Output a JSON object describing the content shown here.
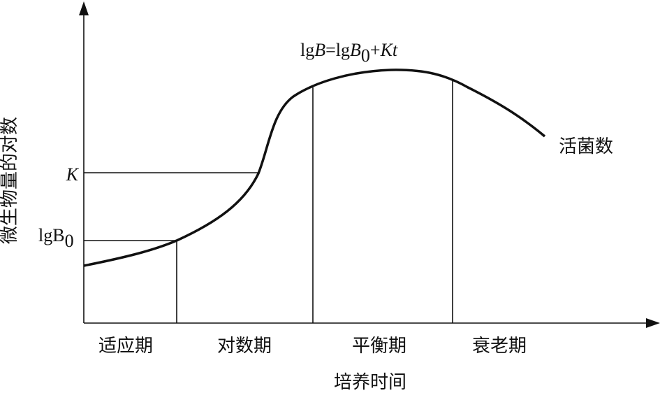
{
  "y_axis_label": "微生物量的对数",
  "x_axis_label": "培养时间",
  "y_marks": {
    "k": "K",
    "lgb0": {
      "base": "lgB",
      "sub": "0"
    }
  },
  "formula": {
    "parts": [
      "lg",
      "B",
      "=lg",
      "B",
      "0",
      "+",
      "Kt"
    ]
  },
  "curve_label": "活菌数",
  "phases": [
    "适应期",
    "对数期",
    "平衡期",
    "衰老期"
  ]
}
